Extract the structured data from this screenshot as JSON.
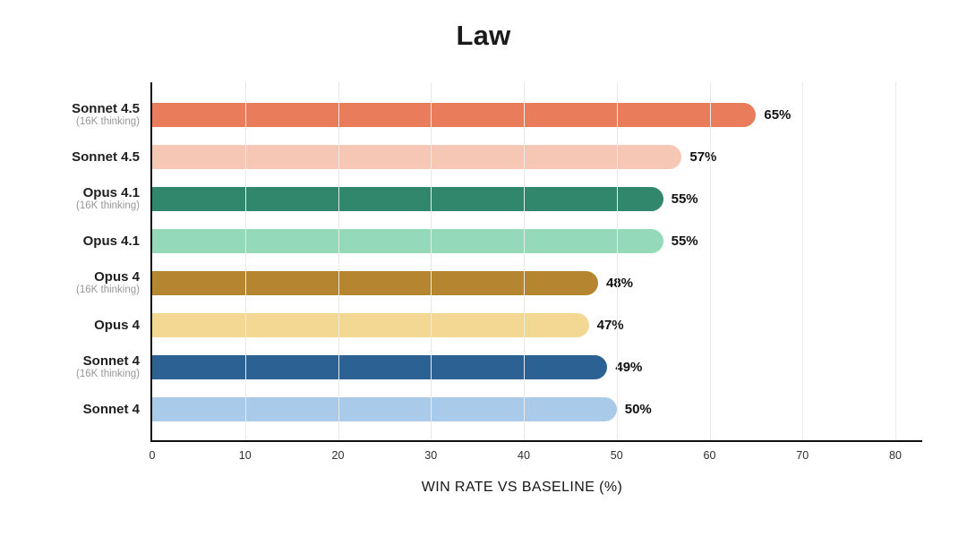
{
  "chart_data": {
    "type": "bar",
    "orientation": "horizontal",
    "title": "Law",
    "xlabel": "WIN RATE VS BASELINE (%)",
    "ylabel": "",
    "xlim": [
      0,
      80
    ],
    "xticks": [
      0,
      10,
      20,
      30,
      40,
      50,
      60,
      70,
      80
    ],
    "grid": true,
    "legend": "none",
    "categories": [
      "Sonnet 4.5",
      "Sonnet 4.5",
      "Opus 4.1",
      "Opus 4.1",
      "Opus 4",
      "Opus 4",
      "Sonnet 4",
      "Sonnet 4"
    ],
    "sublabels": [
      "(16K thinking)",
      "",
      "(16K thinking)",
      "",
      "(16K thinking)",
      "",
      "(16K thinking)",
      ""
    ],
    "values": [
      65,
      57,
      55,
      55,
      48,
      47,
      49,
      50
    ],
    "value_labels": [
      "65%",
      "57%",
      "55%",
      "55%",
      "48%",
      "47%",
      "49%",
      "50%"
    ],
    "colors": [
      "#E97C5B",
      "#F6C7B4",
      "#30876B",
      "#95D9BB",
      "#B5862F",
      "#F2D893",
      "#2B6193",
      "#A9CBE9"
    ],
    "axis_color": "#111111",
    "gridline_color": "#e9e9e9"
  }
}
